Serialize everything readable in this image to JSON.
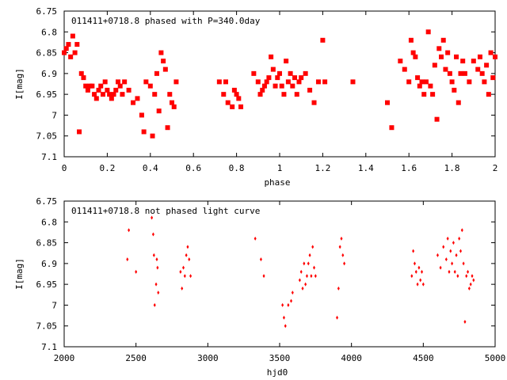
{
  "colors": {
    "points": "#ff0000",
    "axes": "#000000",
    "background": "#ffffff"
  },
  "chart_data": [
    {
      "type": "scatter",
      "title": "011411+0718.8 phased with P=340.0day",
      "xlabel": "phase",
      "ylabel": "I[mag]",
      "xlim": [
        0,
        2
      ],
      "ylim": [
        7.1,
        6.75
      ],
      "y_inverted": true,
      "grid": false,
      "legend": "none",
      "xticks": [
        0,
        0.2,
        0.4,
        0.6,
        0.8,
        1,
        1.2,
        1.4,
        1.6,
        1.8,
        2
      ],
      "xtick_labels": [
        "0",
        "0.2",
        "0.4",
        "0.6",
        "0.8",
        "1",
        "1.2",
        "1.4",
        "1.6",
        "1.8",
        "2"
      ],
      "yticks": [
        6.75,
        6.8,
        6.85,
        6.9,
        6.95,
        7,
        7.05,
        7.1
      ],
      "ytick_labels": [
        "6.75",
        "6.8",
        "6.85",
        "6.9",
        "6.95",
        "7",
        "7.05",
        "7.1"
      ],
      "marker": "star",
      "series": [
        {
          "x": [
            0.0,
            0.01,
            0.02,
            0.03,
            0.04,
            0.05,
            0.06,
            0.07,
            0.08,
            0.09,
            0.1,
            0.11,
            0.12,
            0.13,
            0.14,
            0.15,
            0.16,
            0.17,
            0.18,
            0.19,
            0.2,
            0.21,
            0.22,
            0.23,
            0.24,
            0.25,
            0.26,
            0.27,
            0.28,
            0.3,
            0.32,
            0.34,
            0.36,
            0.37,
            0.38,
            0.4,
            0.41,
            0.42,
            0.43,
            0.44,
            0.45,
            0.46,
            0.47,
            0.48,
            0.49,
            0.5,
            0.51,
            0.52,
            0.72,
            0.74,
            0.75,
            0.76,
            0.78,
            0.79,
            0.8,
            0.81,
            0.82,
            0.88,
            0.9,
            0.91,
            0.92,
            0.93,
            0.94,
            0.95,
            0.96,
            0.97,
            0.98,
            0.99,
            1.0,
            1.01,
            1.02,
            1.03,
            1.04,
            1.05,
            1.06,
            1.07,
            1.08,
            1.09,
            1.1,
            1.12,
            1.14,
            1.16,
            1.18,
            1.2,
            1.21,
            1.34,
            1.5,
            1.52,
            1.56,
            1.58,
            1.6,
            1.61,
            1.62,
            1.63,
            1.64,
            1.65,
            1.66,
            1.67,
            1.68,
            1.69,
            1.7,
            1.71,
            1.72,
            1.73,
            1.74,
            1.75,
            1.76,
            1.77,
            1.78,
            1.79,
            1.8,
            1.81,
            1.82,
            1.83,
            1.84,
            1.85,
            1.86,
            1.88,
            1.9,
            1.92,
            1.93,
            1.94,
            1.95,
            1.96,
            1.97,
            1.98,
            1.99,
            2.0
          ],
          "y": [
            6.85,
            6.84,
            6.83,
            6.86,
            6.81,
            6.85,
            6.83,
            7.04,
            6.9,
            6.91,
            6.93,
            6.94,
            6.93,
            6.93,
            6.95,
            6.96,
            6.94,
            6.93,
            6.95,
            6.92,
            6.94,
            6.95,
            6.96,
            6.95,
            6.94,
            6.92,
            6.93,
            6.95,
            6.92,
            6.94,
            6.97,
            6.96,
            7.0,
            7.04,
            6.92,
            6.93,
            7.05,
            6.95,
            6.9,
            6.99,
            6.85,
            6.87,
            6.89,
            7.03,
            6.95,
            6.97,
            6.98,
            6.92,
            6.92,
            6.95,
            6.92,
            6.97,
            6.98,
            6.94,
            6.95,
            6.96,
            6.98,
            6.9,
            6.92,
            6.95,
            6.94,
            6.93,
            6.92,
            6.91,
            6.86,
            6.89,
            6.93,
            6.91,
            6.9,
            6.93,
            6.95,
            6.87,
            6.92,
            6.9,
            6.93,
            6.91,
            6.95,
            6.92,
            6.91,
            6.9,
            6.94,
            6.97,
            6.92,
            6.82,
            6.92,
            6.92,
            6.97,
            7.03,
            6.87,
            6.89,
            6.92,
            6.82,
            6.85,
            6.86,
            6.91,
            6.93,
            6.92,
            6.95,
            6.92,
            6.8,
            6.93,
            6.95,
            6.88,
            7.01,
            6.84,
            6.86,
            6.82,
            6.89,
            6.85,
            6.9,
            6.92,
            6.94,
            6.86,
            6.97,
            6.9,
            6.87,
            6.9,
            6.92,
            6.87,
            6.89,
            6.86,
            6.9,
            6.92,
            6.88,
            6.95,
            6.85,
            6.91,
            6.86
          ]
        }
      ]
    },
    {
      "type": "scatter",
      "title": "011411+0718.8 not phased light curve",
      "xlabel": "hjd0",
      "ylabel": "I[mag]",
      "xlim": [
        2000,
        5000
      ],
      "ylim": [
        7.1,
        6.75
      ],
      "y_inverted": true,
      "grid": false,
      "legend": "none",
      "xticks": [
        2000,
        2500,
        3000,
        3500,
        4000,
        4500,
        5000
      ],
      "xtick_labels": [
        "2000",
        "2500",
        "3000",
        "3500",
        "4000",
        "4500",
        "5000"
      ],
      "yticks": [
        6.75,
        6.8,
        6.85,
        6.9,
        6.95,
        7,
        7.05,
        7.1
      ],
      "ytick_labels": [
        "6.75",
        "6.8",
        "6.85",
        "6.9",
        "6.95",
        "7",
        "7.05",
        "7.1"
      ],
      "marker": "small-diamond",
      "series": [
        {
          "x": [
            2440,
            2450,
            2500,
            2610,
            2620,
            2625,
            2630,
            2640,
            2645,
            2650,
            2655,
            2810,
            2820,
            2830,
            2840,
            2850,
            2860,
            2870,
            2880,
            3330,
            3370,
            3390,
            3520,
            3530,
            3540,
            3560,
            3580,
            3590,
            3640,
            3650,
            3660,
            3670,
            3680,
            3690,
            3700,
            3710,
            3720,
            3730,
            3740,
            3750,
            3900,
            3910,
            3920,
            3930,
            3940,
            3950,
            4420,
            4430,
            4440,
            4450,
            4460,
            4470,
            4480,
            4490,
            4500,
            4600,
            4620,
            4640,
            4660,
            4670,
            4680,
            4690,
            4700,
            4710,
            4720,
            4730,
            4740,
            4750,
            4760,
            4770,
            4780,
            4790,
            4800,
            4810,
            4820,
            4830,
            4840,
            4850
          ],
          "y": [
            6.89,
            6.82,
            6.92,
            6.79,
            6.83,
            6.88,
            7.0,
            6.95,
            6.89,
            6.91,
            6.97,
            6.92,
            6.96,
            6.91,
            6.93,
            6.88,
            6.86,
            6.89,
            6.93,
            6.84,
            6.89,
            6.93,
            7.0,
            7.03,
            7.05,
            7.0,
            6.99,
            6.97,
            6.94,
            6.92,
            6.96,
            6.9,
            6.95,
            6.93,
            6.9,
            6.88,
            6.93,
            6.86,
            6.91,
            6.93,
            7.03,
            6.96,
            6.86,
            6.84,
            6.88,
            6.9,
            6.93,
            6.87,
            6.9,
            6.92,
            6.95,
            6.91,
            6.94,
            6.92,
            6.95,
            6.88,
            6.91,
            6.86,
            6.89,
            6.84,
            6.92,
            6.87,
            6.9,
            6.85,
            6.92,
            6.88,
            6.93,
            6.84,
            6.87,
            6.82,
            6.9,
            7.04,
            6.93,
            6.92,
            6.96,
            6.95,
            6.93,
            6.94
          ]
        }
      ]
    }
  ]
}
